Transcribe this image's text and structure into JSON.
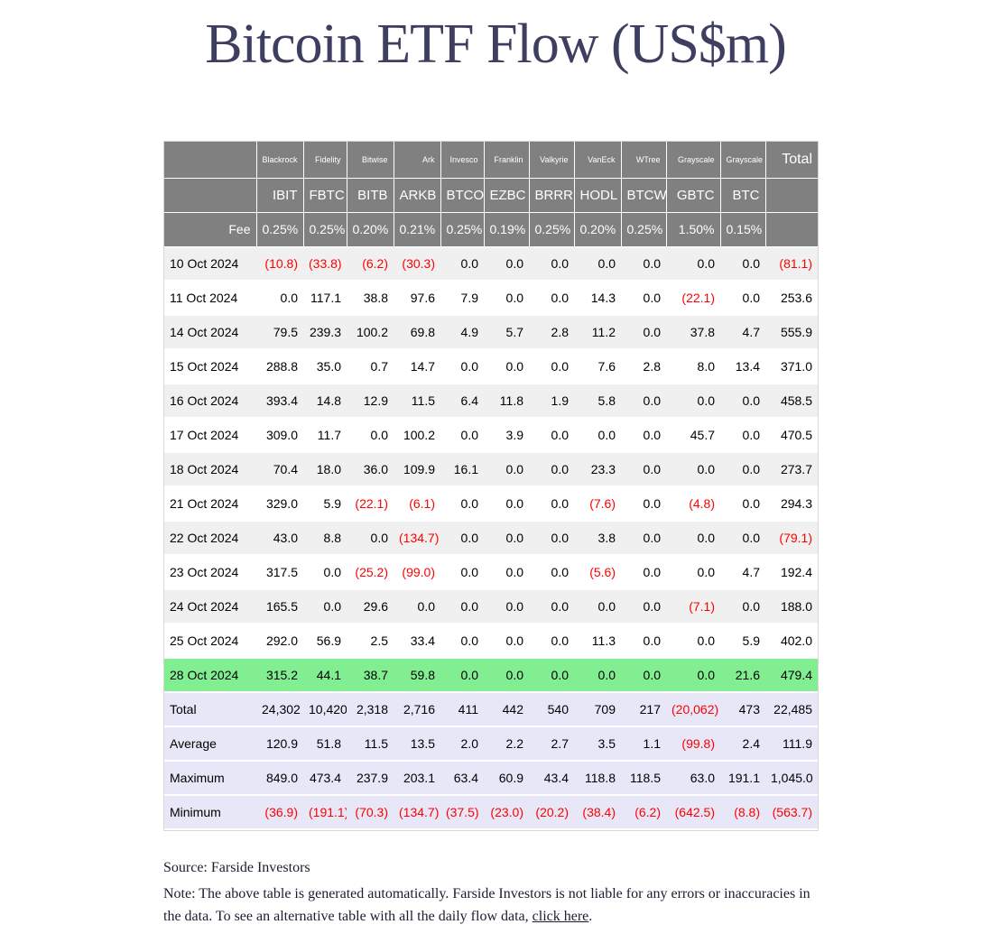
{
  "title": "Bitcoin ETF Flow (US$m)",
  "table": {
    "total_header": "Total",
    "providers": [
      "Blackrock",
      "Fidelity",
      "Bitwise",
      "Ark",
      "Invesco",
      "Franklin",
      "Valkyrie",
      "VanEck",
      "WTree",
      "Grayscale",
      "Grayscale"
    ],
    "tickers": [
      "IBIT",
      "FBTC",
      "BITB",
      "ARKB",
      "BTCO",
      "EZBC",
      "BRRR",
      "HODL",
      "BTCW",
      "GBTC",
      "BTC"
    ],
    "fee_row": {
      "label": "Fee",
      "values": [
        "0.25%",
        "0.25%",
        "0.20%",
        "0.21%",
        "0.25%",
        "0.19%",
        "0.25%",
        "0.20%",
        "0.25%",
        "1.50%",
        "0.15%"
      ]
    },
    "rows": [
      {
        "date": "10 Oct 2024",
        "values": [
          "(10.8)",
          "(33.8)",
          "(6.2)",
          "(30.3)",
          "0.0",
          "0.0",
          "0.0",
          "0.0",
          "0.0",
          "0.0",
          "0.0"
        ],
        "total": "(81.1)"
      },
      {
        "date": "11 Oct 2024",
        "values": [
          "0.0",
          "117.1",
          "38.8",
          "97.6",
          "7.9",
          "0.0",
          "0.0",
          "14.3",
          "0.0",
          "(22.1)",
          "0.0"
        ],
        "total": "253.6"
      },
      {
        "date": "14 Oct 2024",
        "values": [
          "79.5",
          "239.3",
          "100.2",
          "69.8",
          "4.9",
          "5.7",
          "2.8",
          "11.2",
          "0.0",
          "37.8",
          "4.7"
        ],
        "total": "555.9"
      },
      {
        "date": "15 Oct 2024",
        "values": [
          "288.8",
          "35.0",
          "0.7",
          "14.7",
          "0.0",
          "0.0",
          "0.0",
          "7.6",
          "2.8",
          "8.0",
          "13.4"
        ],
        "total": "371.0"
      },
      {
        "date": "16 Oct 2024",
        "values": [
          "393.4",
          "14.8",
          "12.9",
          "11.5",
          "6.4",
          "11.8",
          "1.9",
          "5.8",
          "0.0",
          "0.0",
          "0.0"
        ],
        "total": "458.5"
      },
      {
        "date": "17 Oct 2024",
        "values": [
          "309.0",
          "11.7",
          "0.0",
          "100.2",
          "0.0",
          "3.9",
          "0.0",
          "0.0",
          "0.0",
          "45.7",
          "0.0"
        ],
        "total": "470.5"
      },
      {
        "date": "18 Oct 2024",
        "values": [
          "70.4",
          "18.0",
          "36.0",
          "109.9",
          "16.1",
          "0.0",
          "0.0",
          "23.3",
          "0.0",
          "0.0",
          "0.0"
        ],
        "total": "273.7"
      },
      {
        "date": "21 Oct 2024",
        "values": [
          "329.0",
          "5.9",
          "(22.1)",
          "(6.1)",
          "0.0",
          "0.0",
          "0.0",
          "(7.6)",
          "0.0",
          "(4.8)",
          "0.0"
        ],
        "total": "294.3"
      },
      {
        "date": "22 Oct 2024",
        "values": [
          "43.0",
          "8.8",
          "0.0",
          "(134.7)",
          "0.0",
          "0.0",
          "0.0",
          "3.8",
          "0.0",
          "0.0",
          "0.0"
        ],
        "total": "(79.1)"
      },
      {
        "date": "23 Oct 2024",
        "values": [
          "317.5",
          "0.0",
          "(25.2)",
          "(99.0)",
          "0.0",
          "0.0",
          "0.0",
          "(5.6)",
          "0.0",
          "0.0",
          "4.7"
        ],
        "total": "192.4"
      },
      {
        "date": "24 Oct 2024",
        "values": [
          "165.5",
          "0.0",
          "29.6",
          "0.0",
          "0.0",
          "0.0",
          "0.0",
          "0.0",
          "0.0",
          "(7.1)",
          "0.0"
        ],
        "total": "188.0"
      },
      {
        "date": "25 Oct 2024",
        "values": [
          "292.0",
          "56.9",
          "2.5",
          "33.4",
          "0.0",
          "0.0",
          "0.0",
          "11.3",
          "0.0",
          "0.0",
          "5.9"
        ],
        "total": "402.0"
      },
      {
        "date": "28 Oct 2024",
        "values": [
          "315.2",
          "44.1",
          "38.7",
          "59.8",
          "0.0",
          "0.0",
          "0.0",
          "0.0",
          "0.0",
          "0.0",
          "21.6"
        ],
        "total": "479.4",
        "highlight": true
      }
    ],
    "summary_rows": [
      {
        "label": "Total",
        "values": [
          "24,302",
          "10,420",
          "2,318",
          "2,716",
          "411",
          "442",
          "540",
          "709",
          "217",
          "(20,062)",
          "473"
        ],
        "total": "22,485"
      },
      {
        "label": "Average",
        "values": [
          "120.9",
          "51.8",
          "11.5",
          "13.5",
          "2.0",
          "2.2",
          "2.7",
          "3.5",
          "1.1",
          "(99.8)",
          "2.4"
        ],
        "total": "111.9"
      },
      {
        "label": "Maximum",
        "values": [
          "849.0",
          "473.4",
          "237.9",
          "203.1",
          "63.4",
          "60.9",
          "43.4",
          "118.8",
          "118.5",
          "63.0",
          "191.1"
        ],
        "total": "1,045.0"
      },
      {
        "label": "Minimum",
        "values": [
          "(36.9)",
          "(191.1)",
          "(70.3)",
          "(134.7)",
          "(37.5)",
          "(23.0)",
          "(20.2)",
          "(38.4)",
          "(6.2)",
          "(642.5)",
          "(8.8)"
        ],
        "total": "(563.7)"
      }
    ]
  },
  "footer": {
    "source": "Source: Farside Investors",
    "note_before": "Note: The above table is generated automatically. Farside Investors is not liable for any errors or inaccuracies in the data. To see an alternative table with all the daily flow data, ",
    "link_text": "click here",
    "note_after": "."
  },
  "colors": {
    "header_bg": "#808080",
    "header_text": "#ffffff",
    "highlight_row_bg": "#82ee92",
    "summary_row_bg": "#e7e7f8",
    "zebra_row_bg": "#f0f0f0",
    "negative_value": "#ff0000",
    "title_text": "#3e3e60"
  }
}
